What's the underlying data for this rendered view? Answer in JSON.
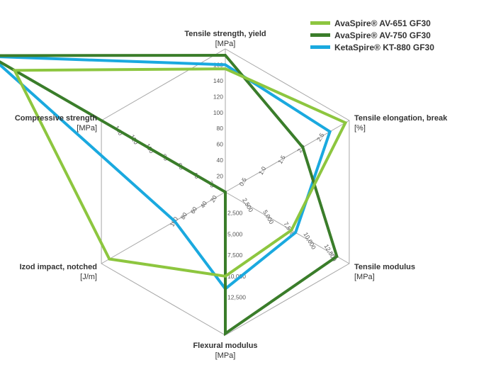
{
  "chart_data": {
    "type": "radar",
    "series": [
      {
        "name": "AvaSpire® AV-651 GF30",
        "color": "#8dc63f",
        "values": [
          155,
          3.1,
          8000,
          10000,
          234,
          272
        ]
      },
      {
        "name": "AvaSpire® AV-750 GF30",
        "color": "#3a7d2a",
        "values": [
          172,
          2.0,
          13500,
          16800,
          0,
          305
        ]
      },
      {
        "name": "KetaSpire® KT-880 GF30",
        "color": "#1aa9df",
        "values": [
          160,
          2.7,
          8500,
          11500,
          102,
          303
        ]
      }
    ],
    "axes": [
      {
        "title": "Tensile strength, yield",
        "unit": "[MPa]",
        "ticks": [
          {
            "value": 20,
            "label": "20"
          },
          {
            "value": 40,
            "label": "40"
          },
          {
            "value": 60,
            "label": "60"
          },
          {
            "value": 80,
            "label": "80"
          },
          {
            "value": 100,
            "label": "100"
          },
          {
            "value": 120,
            "label": "120"
          },
          {
            "value": 140,
            "label": "140"
          },
          {
            "value": 160,
            "label": "160"
          }
        ]
      },
      {
        "title": "Tensile elongation, break",
        "unit": "[%]",
        "ticks": [
          {
            "value": 0.5,
            "label": "0.5"
          },
          {
            "value": 1.0,
            "label": "1.0"
          },
          {
            "value": 1.5,
            "label": "1.5"
          },
          {
            "value": 2.0,
            "label": "2.0"
          },
          {
            "value": 2.5,
            "label": "2.5"
          }
        ]
      },
      {
        "title": "Tensile modulus",
        "unit": "[MPa]",
        "ticks": [
          {
            "value": 2500,
            "label": "2,500"
          },
          {
            "value": 5000,
            "label": "5,000"
          },
          {
            "value": 7500,
            "label": "7,500"
          },
          {
            "value": 10000,
            "label": "10,000"
          },
          {
            "value": 12500,
            "label": "12,500"
          }
        ]
      },
      {
        "title": "Flexural modulus",
        "unit": "[MPa]",
        "ticks": [
          {
            "value": 2500,
            "label": "2,500"
          },
          {
            "value": 5000,
            "label": "5,000"
          },
          {
            "value": 7500,
            "label": "7,500"
          },
          {
            "value": 10000,
            "label": "10,000"
          },
          {
            "value": 12500,
            "label": "12,500"
          }
        ]
      },
      {
        "title": "Izod impact, notched",
        "unit": "[J/m]",
        "ticks": [
          {
            "value": 20,
            "label": "20"
          },
          {
            "value": 40,
            "label": "40"
          },
          {
            "value": 60,
            "label": "60"
          },
          {
            "value": 80,
            "label": "80"
          },
          {
            "value": 100,
            "label": "100"
          }
        ]
      },
      {
        "title": "Compressive strength",
        "unit": "[MPa]",
        "ticks": [
          {
            "value": 20,
            "label": "20"
          },
          {
            "value": 40,
            "label": "40"
          },
          {
            "value": 60,
            "label": "60"
          },
          {
            "value": 80,
            "label": "80"
          },
          {
            "value": 100,
            "label": "100"
          },
          {
            "value": 120,
            "label": "120"
          },
          {
            "value": 140,
            "label": "140"
          }
        ]
      }
    ],
    "ranges": [
      [
        0,
        180
      ],
      [
        0,
        3.2
      ],
      [
        0,
        15000
      ],
      [
        0,
        17000
      ],
      [
        0,
        250
      ],
      [
        0,
        160
      ]
    ],
    "grid": true,
    "legend_position": "top-right"
  }
}
